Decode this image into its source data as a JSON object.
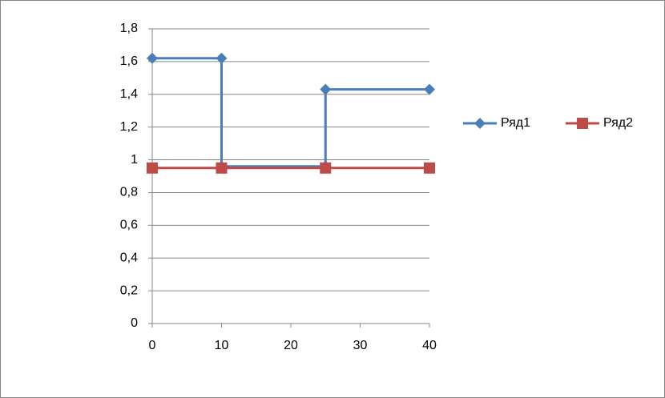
{
  "chart_data": {
    "type": "scatter-line",
    "series": [
      {
        "name": "Ряд1",
        "color": "#4a7ebb",
        "marker": "diamond",
        "x": [
          0,
          10,
          10,
          25,
          25,
          40
        ],
        "values": [
          1.62,
          1.62,
          0.96,
          0.96,
          1.43,
          1.43
        ]
      },
      {
        "name": "Ряд2",
        "color": "#be4b48",
        "marker": "square",
        "x": [
          0,
          10,
          25,
          40
        ],
        "values": [
          0.95,
          0.95,
          0.95,
          0.95
        ]
      }
    ],
    "xlim": [
      0,
      40
    ],
    "xticks": [
      0,
      10,
      20,
      30,
      40
    ],
    "ylim": [
      0,
      1.8
    ],
    "yticks": [
      0,
      {
        "value": 0.2,
        "label": "0,2"
      },
      {
        "value": 0.4,
        "label": "0,4"
      },
      {
        "value": 0.6,
        "label": "0,6"
      },
      {
        "value": 0.8,
        "label": "0,8"
      },
      1,
      {
        "value": 1.2,
        "label": "1,2"
      },
      {
        "value": 1.4,
        "label": "1,4"
      },
      {
        "value": 1.6,
        "label": "1,6"
      },
      {
        "value": 1.8,
        "label": "1,8"
      }
    ],
    "grid": true,
    "legend": "right"
  }
}
